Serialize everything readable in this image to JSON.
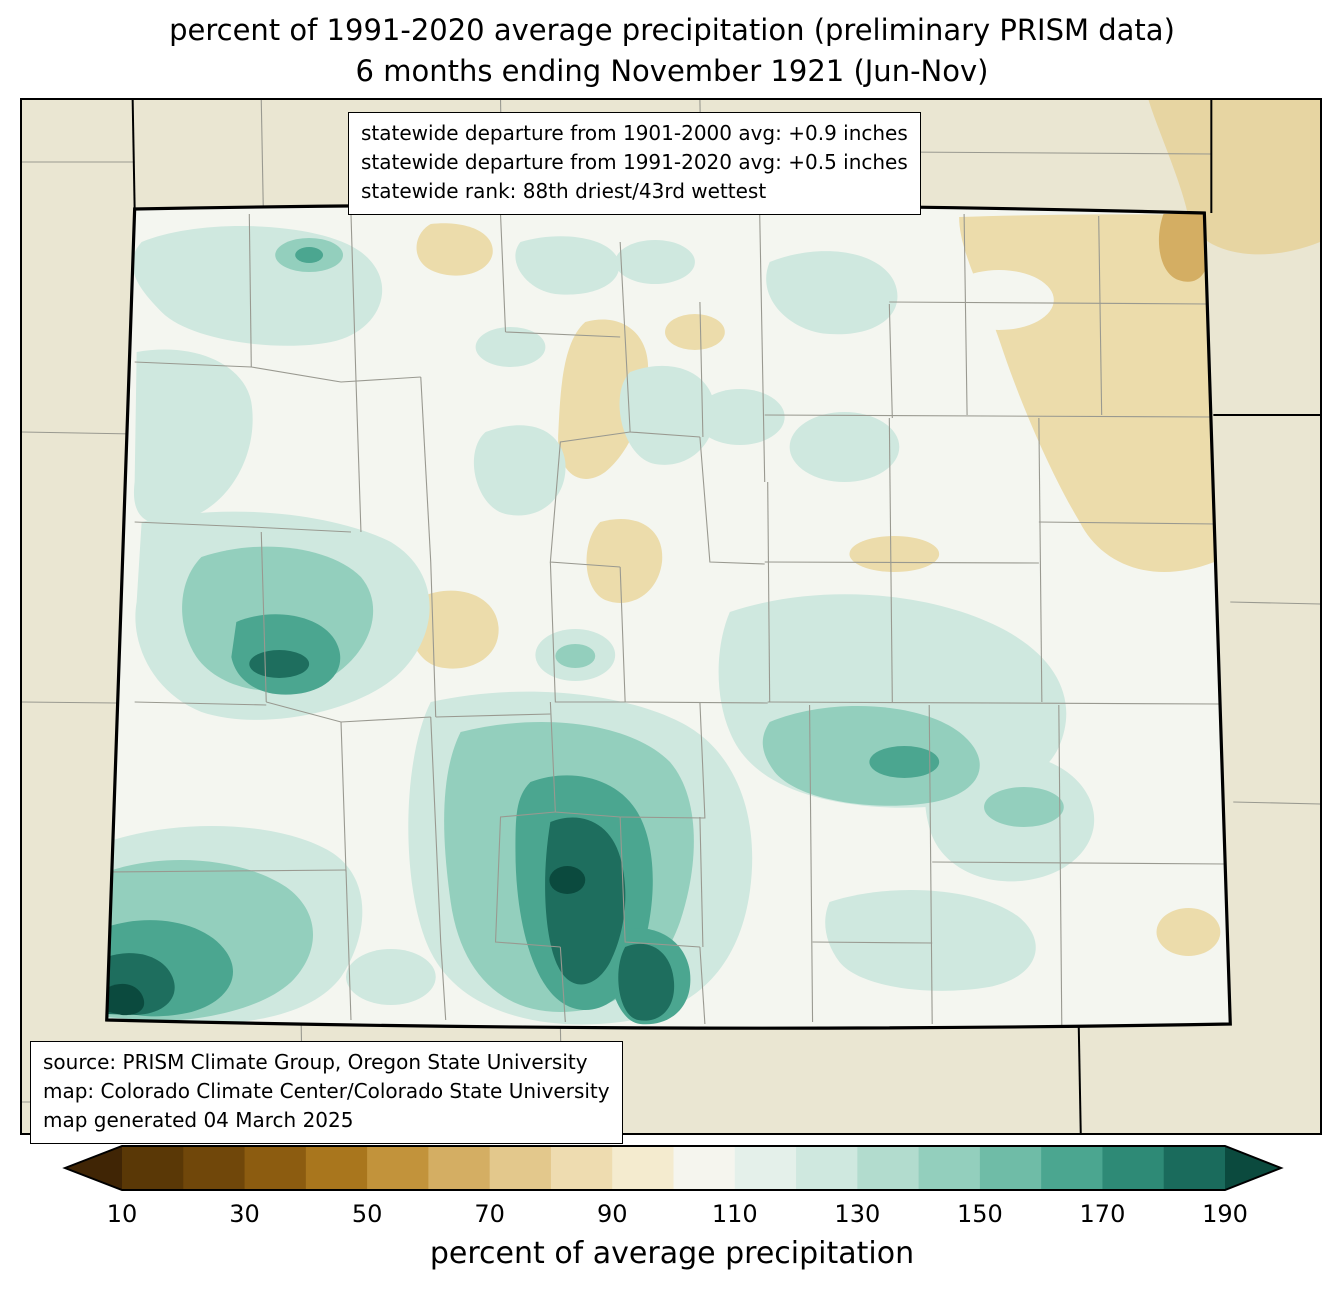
{
  "title": {
    "line1": "percent of 1991-2020 average precipitation (preliminary PRISM data)",
    "line2": "6 months ending November 1921 (Jun-Nov)"
  },
  "stats_box": {
    "lines": [
      "statewide departure from 1901-2000 avg: +0.9 inches",
      "statewide departure from 1991-2020 avg: +0.5 inches",
      "statewide rank: 88th driest/43rd wettest"
    ]
  },
  "source_box": {
    "lines": [
      "source: PRISM Climate Group, Oregon State University",
      "map: Colorado Climate Center/Colorado State University",
      "map generated 04 March 2025"
    ]
  },
  "colorbar": {
    "label": "percent of average precipitation",
    "tick_labels": [
      "10",
      "30",
      "50",
      "70",
      "90",
      "110",
      "130",
      "150",
      "170",
      "190"
    ],
    "range": [
      10,
      190
    ],
    "segment_step": 10,
    "under_arrow_color": "#402505",
    "over_arrow_color": "#0b4a3e",
    "outline_color": "#000000",
    "segment_colors": [
      "#5a3806",
      "#70470a",
      "#8c5c10",
      "#a9761d",
      "#c2933b",
      "#d4ae63",
      "#e3c88c",
      "#eedcb0",
      "#f4ebcf",
      "#f5f5ee",
      "#e4f0ea",
      "#cfe8df",
      "#b2dcce",
      "#93cfbd",
      "#6fbca7",
      "#4ba690",
      "#2e8a76",
      "#1a6b5c"
    ]
  },
  "map": {
    "region": "Colorado",
    "colors": {
      "outside": "#eae6d2",
      "outtan": "#e7d5a2",
      "base": "#f4f6f0",
      "l1": "#cfe8df",
      "l2": "#93cfbd",
      "l3": "#4ba690",
      "l4": "#1e6e5e",
      "l5": "#0b4a3e",
      "t1": "#ecdcab",
      "t2": "#d4ae63",
      "county": "#999990",
      "stateline": "#000000"
    }
  }
}
